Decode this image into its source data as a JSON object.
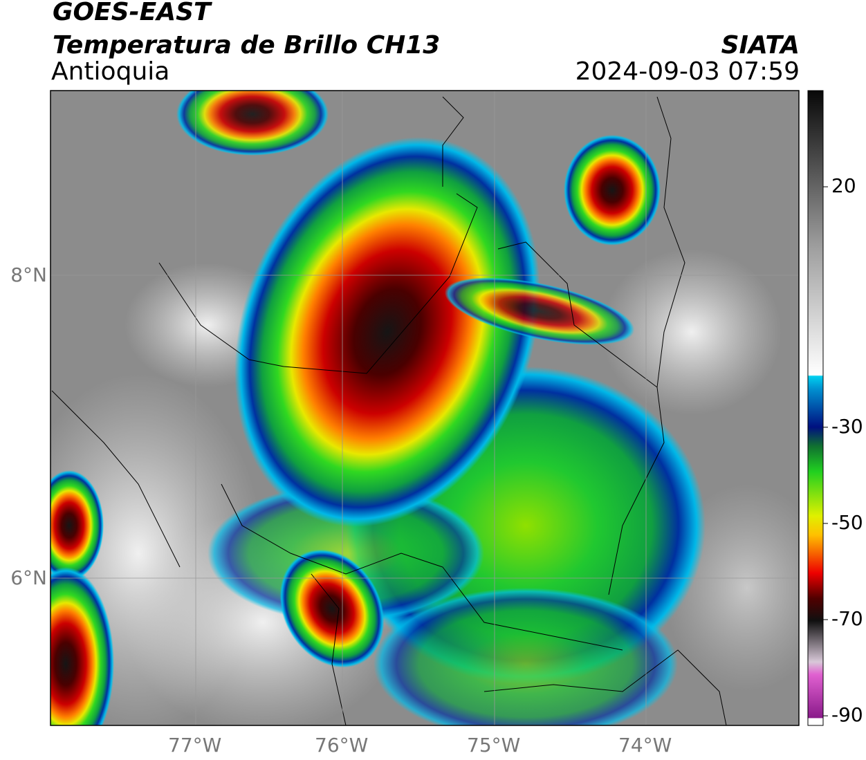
{
  "header": {
    "title": "GOES-EAST",
    "subtitle": "Temperatura de Brillo CH13",
    "region": "Antioquia",
    "source": "SIATA",
    "datetime": "2024-09-03 07:59"
  },
  "map": {
    "lat_labels": [
      "8°N",
      "6°N"
    ],
    "lon_labels": [
      "77°W",
      "76°W",
      "75°W",
      "74°W"
    ]
  },
  "colorbar": {
    "lim": [
      -92,
      40
    ],
    "ticks": [
      20,
      -30,
      -50,
      -70,
      -90
    ]
  }
}
